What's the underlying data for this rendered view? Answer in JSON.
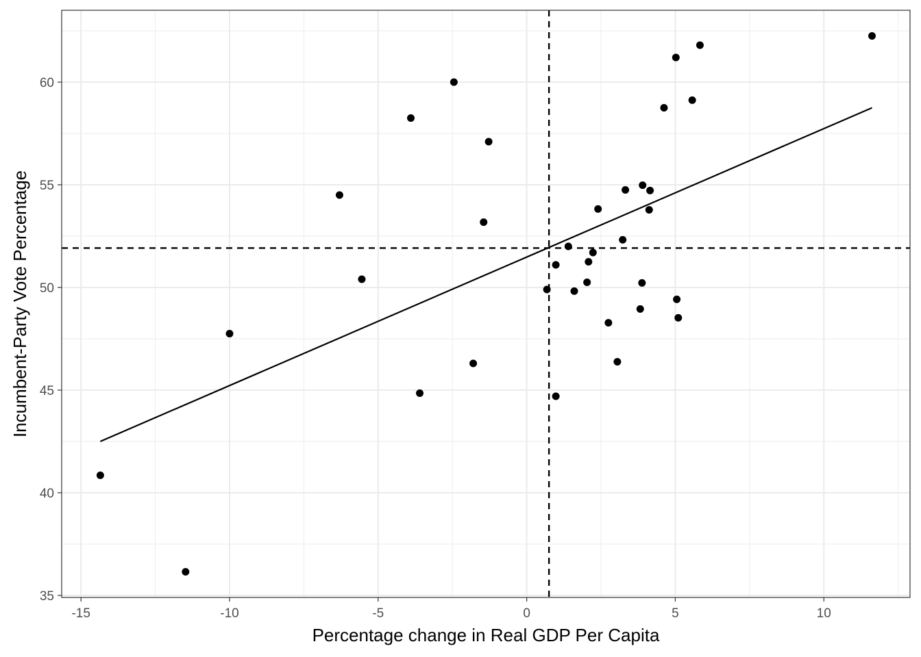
{
  "chart_data": {
    "type": "scatter",
    "xlabel": "Percentage change in Real GDP Per Capita",
    "ylabel": "Incumbent-Party Vote Percentage",
    "xlim": [
      -15.65,
      12.9
    ],
    "ylim": [
      34.9,
      63.5
    ],
    "x_ticks": [
      -15,
      -10,
      -5,
      0,
      5,
      10
    ],
    "x_tick_labels": [
      "-15",
      "-10",
      "-5",
      "0",
      "5",
      "10"
    ],
    "y_ticks": [
      35,
      40,
      45,
      50,
      55,
      60
    ],
    "y_tick_labels": [
      "35",
      "40",
      "45",
      "50",
      "55",
      "60"
    ],
    "grid": true,
    "colors": {
      "points": "#000000",
      "grid": "#ebebeb",
      "border": "#333333"
    },
    "points": [
      {
        "x": -14.35,
        "y": 40.85
      },
      {
        "x": -11.48,
        "y": 36.15
      },
      {
        "x": -10.0,
        "y": 47.75
      },
      {
        "x": -6.3,
        "y": 54.5
      },
      {
        "x": -5.55,
        "y": 50.4
      },
      {
        "x": -3.9,
        "y": 58.25
      },
      {
        "x": -3.6,
        "y": 44.85
      },
      {
        "x": -2.45,
        "y": 60.0
      },
      {
        "x": -1.8,
        "y": 46.3
      },
      {
        "x": -1.45,
        "y": 53.18
      },
      {
        "x": -1.28,
        "y": 57.1
      },
      {
        "x": 0.68,
        "y": 49.9
      },
      {
        "x": 0.98,
        "y": 51.1
      },
      {
        "x": 0.98,
        "y": 44.7
      },
      {
        "x": 1.4,
        "y": 52.0
      },
      {
        "x": 1.6,
        "y": 49.82
      },
      {
        "x": 2.03,
        "y": 50.25
      },
      {
        "x": 2.08,
        "y": 51.25
      },
      {
        "x": 2.23,
        "y": 51.7
      },
      {
        "x": 2.4,
        "y": 53.82
      },
      {
        "x": 2.75,
        "y": 48.28
      },
      {
        "x": 3.05,
        "y": 46.38
      },
      {
        "x": 3.23,
        "y": 52.32
      },
      {
        "x": 3.32,
        "y": 54.75
      },
      {
        "x": 3.82,
        "y": 48.95
      },
      {
        "x": 3.88,
        "y": 50.22
      },
      {
        "x": 3.9,
        "y": 54.98
      },
      {
        "x": 4.12,
        "y": 53.78
      },
      {
        "x": 4.15,
        "y": 54.72
      },
      {
        "x": 4.62,
        "y": 58.75
      },
      {
        "x": 5.02,
        "y": 61.2
      },
      {
        "x": 5.05,
        "y": 49.42
      },
      {
        "x": 5.1,
        "y": 48.52
      },
      {
        "x": 5.57,
        "y": 59.12
      },
      {
        "x": 5.83,
        "y": 61.8
      },
      {
        "x": 11.62,
        "y": 62.25
      }
    ],
    "fit_line": {
      "x": [
        -14.35,
        11.62
      ],
      "y": [
        42.5,
        58.75
      ]
    },
    "reference_lines": {
      "vline_x": 0.75,
      "hline_y": 51.92
    }
  }
}
